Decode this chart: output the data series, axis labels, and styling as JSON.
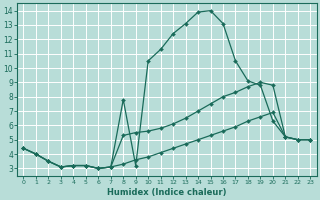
{
  "xlabel": "Humidex (Indice chaleur)",
  "bg_color": "#b8ddd8",
  "grid_color": "#ffffff",
  "line_color": "#1a6b5a",
  "xlim": [
    -0.5,
    23.5
  ],
  "ylim": [
    2.5,
    14.5
  ],
  "xticks": [
    0,
    1,
    2,
    3,
    4,
    5,
    6,
    7,
    8,
    9,
    10,
    11,
    12,
    13,
    14,
    15,
    16,
    17,
    18,
    19,
    20,
    21,
    22,
    23
  ],
  "yticks": [
    3,
    4,
    5,
    6,
    7,
    8,
    9,
    10,
    11,
    12,
    13,
    14
  ],
  "line1_x": [
    0,
    1,
    2,
    3,
    4,
    5,
    6,
    7,
    8,
    9,
    10,
    11,
    12,
    13,
    14,
    15,
    16,
    17,
    18,
    19,
    20,
    21,
    22,
    23
  ],
  "line1_y": [
    4.4,
    4.0,
    3.5,
    3.1,
    3.2,
    3.2,
    3.0,
    3.1,
    7.8,
    3.2,
    10.5,
    11.3,
    12.4,
    13.1,
    13.9,
    14.0,
    13.1,
    10.5,
    9.1,
    8.8,
    6.3,
    5.2,
    5.0,
    5.0
  ],
  "line2_x": [
    0,
    1,
    2,
    3,
    4,
    5,
    6,
    7,
    8,
    9,
    10,
    11,
    12,
    13,
    14,
    15,
    16,
    17,
    18,
    19,
    20,
    21,
    22,
    23
  ],
  "line2_y": [
    4.4,
    4.0,
    3.5,
    3.1,
    3.2,
    3.2,
    3.0,
    3.1,
    5.3,
    5.5,
    5.6,
    5.8,
    6.1,
    6.5,
    7.0,
    7.5,
    8.0,
    8.3,
    8.7,
    9.0,
    8.8,
    5.2,
    5.0,
    5.0
  ],
  "line3_x": [
    0,
    1,
    2,
    3,
    4,
    5,
    6,
    7,
    8,
    9,
    10,
    11,
    12,
    13,
    14,
    15,
    16,
    17,
    18,
    19,
    20,
    21,
    22,
    23
  ],
  "line3_y": [
    4.4,
    4.0,
    3.5,
    3.1,
    3.2,
    3.2,
    3.0,
    3.1,
    3.3,
    3.6,
    3.8,
    4.1,
    4.4,
    4.7,
    5.0,
    5.3,
    5.6,
    5.9,
    6.3,
    6.6,
    6.9,
    5.2,
    5.0,
    5.0
  ]
}
